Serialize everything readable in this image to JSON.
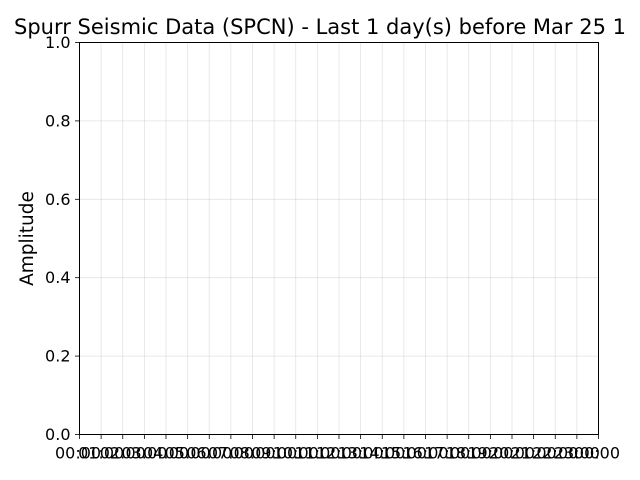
{
  "chart_data": {
    "type": "line",
    "title": "Spurr Seismic Data (SPCN) - Last 1 day(s) before Mar 25 1",
    "xlabel": "",
    "ylabel": "Amplitude",
    "ylim": [
      0.0,
      1.0
    ],
    "yticks": [
      "0.0",
      "0.2",
      "0.4",
      "0.6",
      "0.8",
      "1.0"
    ],
    "xticks": [
      "00:00",
      "01:00",
      "02:00",
      "03:00",
      "04:00",
      "05:00",
      "06:00",
      "07:00",
      "08:00",
      "09:00",
      "10:00",
      "11:00",
      "12:00",
      "13:00",
      "14:00",
      "15:00",
      "16:00",
      "17:00",
      "18:00",
      "19:00",
      "20:00",
      "21:00",
      "22:00",
      "23:00",
      "00:00"
    ],
    "grid": true,
    "series": [],
    "colors": {
      "text": "#000000",
      "grid": "#b0b0b0",
      "frame": "#000000",
      "background": "#ffffff"
    }
  }
}
